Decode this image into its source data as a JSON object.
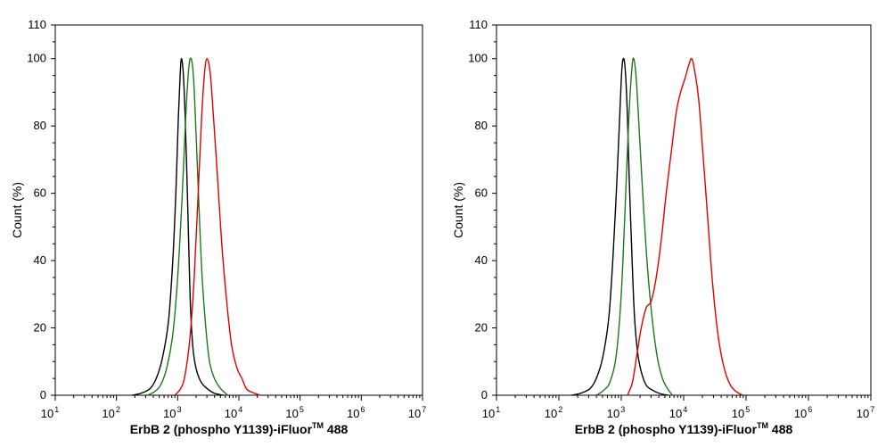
{
  "chart_data": [
    {
      "type": "line",
      "xscale": "log",
      "xlim_exp": [
        1,
        7
      ],
      "xticks": [
        {
          "base": "10",
          "exp": "1"
        },
        {
          "base": "10",
          "exp": "2"
        },
        {
          "base": "10",
          "exp": "3"
        },
        {
          "base": "10",
          "exp": "4"
        },
        {
          "base": "10",
          "exp": "5"
        },
        {
          "base": "10",
          "exp": "6"
        },
        {
          "base": "10",
          "exp": "7"
        }
      ],
      "ylim": [
        0,
        110
      ],
      "yticks": [
        "0",
        "20",
        "40",
        "60",
        "80",
        "100",
        "110"
      ],
      "ylabel": "Count  (%)",
      "xlabel": {
        "main": "ErbB 2 (phospho Y1139)-iFluor",
        "tm": "TM",
        "suffix": " 488"
      },
      "series": [
        {
          "name": "black",
          "color": "#000000",
          "points": [
            [
              2.25,
              0
            ],
            [
              2.4,
              0.6
            ],
            [
              2.55,
              2
            ],
            [
              2.65,
              5
            ],
            [
              2.75,
              11
            ],
            [
              2.85,
              22
            ],
            [
              2.92,
              40
            ],
            [
              2.97,
              60
            ],
            [
              3.01,
              82
            ],
            [
              3.04,
              95
            ],
            [
              3.06,
              100
            ],
            [
              3.09,
              96
            ],
            [
              3.12,
              84
            ],
            [
              3.15,
              66
            ],
            [
              3.18,
              45
            ],
            [
              3.21,
              26
            ],
            [
              3.25,
              14
            ],
            [
              3.3,
              8
            ],
            [
              3.38,
              4
            ],
            [
              3.48,
              2
            ],
            [
              3.6,
              0.6
            ],
            [
              3.75,
              0
            ]
          ]
        },
        {
          "name": "green",
          "color": "#1a7a1a",
          "points": [
            [
              2.5,
              0
            ],
            [
              2.62,
              1
            ],
            [
              2.72,
              3
            ],
            [
              2.82,
              8
            ],
            [
              2.92,
              18
            ],
            [
              3.0,
              35
            ],
            [
              3.07,
              58
            ],
            [
              3.13,
              82
            ],
            [
              3.18,
              97
            ],
            [
              3.22,
              100
            ],
            [
              3.26,
              94
            ],
            [
              3.3,
              78
            ],
            [
              3.35,
              55
            ],
            [
              3.4,
              35
            ],
            [
              3.46,
              20
            ],
            [
              3.52,
              10
            ],
            [
              3.6,
              5
            ],
            [
              3.7,
              2
            ],
            [
              3.82,
              0
            ]
          ]
        },
        {
          "name": "red",
          "color": "#e00000",
          "points": [
            [
              2.95,
              0
            ],
            [
              3.05,
              2
            ],
            [
              3.12,
              6
            ],
            [
              3.2,
              17
            ],
            [
              3.27,
              35
            ],
            [
              3.33,
              58
            ],
            [
              3.39,
              82
            ],
            [
              3.44,
              96
            ],
            [
              3.48,
              100
            ],
            [
              3.53,
              96
            ],
            [
              3.58,
              84
            ],
            [
              3.65,
              65
            ],
            [
              3.72,
              45
            ],
            [
              3.8,
              28
            ],
            [
              3.88,
              15
            ],
            [
              3.97,
              8
            ],
            [
              4.05,
              5
            ],
            [
              4.12,
              2
            ],
            [
              4.2,
              1
            ],
            [
              4.35,
              0
            ]
          ]
        }
      ]
    },
    {
      "type": "line",
      "xscale": "log",
      "xlim_exp": [
        1,
        7
      ],
      "xticks": [
        {
          "base": "10",
          "exp": "1"
        },
        {
          "base": "10",
          "exp": "2"
        },
        {
          "base": "10",
          "exp": "3"
        },
        {
          "base": "10",
          "exp": "4"
        },
        {
          "base": "10",
          "exp": "5"
        },
        {
          "base": "10",
          "exp": "6"
        },
        {
          "base": "10",
          "exp": "7"
        }
      ],
      "ylim": [
        0,
        110
      ],
      "yticks": [
        "0",
        "20",
        "40",
        "60",
        "80",
        "100",
        "110"
      ],
      "ylabel": "Count  (%)",
      "xlabel": {
        "main": "ErbB 2 (phospho Y1139)-iFluor",
        "tm": "TM",
        "suffix": " 488"
      },
      "series": [
        {
          "name": "black",
          "color": "#000000",
          "points": [
            [
              2.2,
              0
            ],
            [
              2.35,
              0.6
            ],
            [
              2.5,
              2
            ],
            [
              2.6,
              5
            ],
            [
              2.7,
              11
            ],
            [
              2.8,
              23
            ],
            [
              2.87,
              42
            ],
            [
              2.93,
              64
            ],
            [
              2.98,
              85
            ],
            [
              3.01,
              97
            ],
            [
              3.04,
              100
            ],
            [
              3.07,
              95
            ],
            [
              3.1,
              82
            ],
            [
              3.13,
              63
            ],
            [
              3.17,
              42
            ],
            [
              3.21,
              24
            ],
            [
              3.26,
              13
            ],
            [
              3.32,
              7
            ],
            [
              3.4,
              3
            ],
            [
              3.5,
              1.5
            ],
            [
              3.62,
              0.5
            ],
            [
              3.75,
              0
            ]
          ]
        },
        {
          "name": "green",
          "color": "#1a7a1a",
          "points": [
            [
              2.6,
              0
            ],
            [
              2.72,
              1.5
            ],
            [
              2.82,
              4
            ],
            [
              2.92,
              12
            ],
            [
              3.0,
              30
            ],
            [
              3.06,
              55
            ],
            [
              3.12,
              82
            ],
            [
              3.17,
              97
            ],
            [
              3.2,
              100
            ],
            [
              3.24,
              94
            ],
            [
              3.29,
              78
            ],
            [
              3.35,
              58
            ],
            [
              3.42,
              38
            ],
            [
              3.5,
              22
            ],
            [
              3.58,
              11
            ],
            [
              3.66,
              5
            ],
            [
              3.74,
              2
            ],
            [
              3.82,
              0
            ]
          ]
        },
        {
          "name": "red",
          "color": "#e00000",
          "points": [
            [
              3.1,
              0
            ],
            [
              3.18,
              4
            ],
            [
              3.25,
              12
            ],
            [
              3.32,
              20
            ],
            [
              3.4,
              26
            ],
            [
              3.48,
              28
            ],
            [
              3.56,
              35
            ],
            [
              3.64,
              46
            ],
            [
              3.72,
              60
            ],
            [
              3.8,
              72
            ],
            [
              3.88,
              84
            ],
            [
              3.95,
              90
            ],
            [
              4.02,
              94
            ],
            [
              4.08,
              98
            ],
            [
              4.13,
              100
            ],
            [
              4.18,
              96
            ],
            [
              4.24,
              88
            ],
            [
              4.3,
              74
            ],
            [
              4.38,
              54
            ],
            [
              4.46,
              34
            ],
            [
              4.55,
              18
            ],
            [
              4.65,
              8
            ],
            [
              4.75,
              3
            ],
            [
              4.85,
              1
            ],
            [
              4.95,
              0
            ]
          ]
        }
      ]
    }
  ]
}
